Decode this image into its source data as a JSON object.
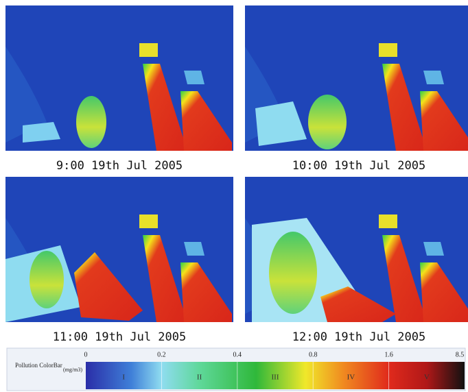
{
  "panels": [
    {
      "caption": "9:00 19th Jul 2005"
    },
    {
      "caption": "10:00 19th Jul 2005"
    },
    {
      "caption": "11:00 19th Jul 2005"
    },
    {
      "caption": "12:00 19th Jul 2005"
    }
  ],
  "colorbar": {
    "title": "Pollution ColorBar",
    "unit": "(mg/m3)",
    "ticks": [
      0,
      0.2,
      0.4,
      0.8,
      1.6,
      8.5
    ],
    "classes": [
      "I",
      "II",
      "III",
      "IV",
      "V"
    ]
  }
}
